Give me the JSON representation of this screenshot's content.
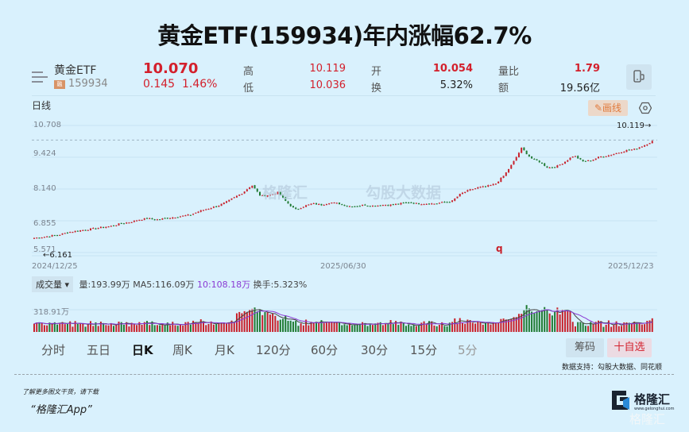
{
  "title": "黄金ETF(159934)年内涨幅62.7%",
  "quote": {
    "name": "黄金ETF",
    "badge": "融",
    "code": "159934",
    "price": "10.070",
    "change": "0.145",
    "change_pct": "1.46%",
    "fields": [
      {
        "label": "高",
        "value": "10.119",
        "color": "red"
      },
      {
        "label": "低",
        "value": "10.036",
        "color": "red"
      },
      {
        "label": "开",
        "value": "10.054",
        "color": "red"
      },
      {
        "label": "换",
        "value": "5.32%",
        "color": "dark"
      },
      {
        "label": "量比",
        "value": "1.79",
        "color": "red"
      },
      {
        "label": "额",
        "value": "19.56亿",
        "color": "dark"
      }
    ]
  },
  "toolbar": {
    "period_name": "日线",
    "draw_label": "✎画线",
    "phone_icon": "phone-landscape-icon",
    "settings_icon": "hexagon-gear-icon"
  },
  "main_chart": {
    "y_ticks": [
      "10.708",
      "9.424",
      "8.140",
      "6.855",
      "5.571"
    ],
    "x_ticks": [
      "2024/12/25",
      "2025/06/30",
      "2025/12/23"
    ],
    "max_marker": "10.119→",
    "min_marker": "←6.161",
    "mid_marker": "q",
    "watermark_left": "格隆汇",
    "watermark_right": "勾股大数据",
    "watermark_url": "www.gogudata.com"
  },
  "volume": {
    "selector": "成交量",
    "vol": "量:193.99万",
    "ma5": "MA5:116.09万",
    "ma10": "10:108.18万",
    "turnover": "换手:5.323%",
    "y_tick": "318.91万"
  },
  "tabs": [
    {
      "label": "分时",
      "active": false
    },
    {
      "label": "五日",
      "active": false
    },
    {
      "label": "日K",
      "active": true
    },
    {
      "label": "周K",
      "active": false
    },
    {
      "label": "月K",
      "active": false
    },
    {
      "label": "120分",
      "active": false
    },
    {
      "label": "60分",
      "active": false
    },
    {
      "label": "30分",
      "active": false
    },
    {
      "label": "15分",
      "active": false
    },
    {
      "label": "5分",
      "active": false
    }
  ],
  "buttons": {
    "chips": "筹码",
    "add_watchlist": "十自选"
  },
  "source": "数据支持：勾股大数据、同花顺",
  "footer": {
    "promo_line1": "了解更多图文干货，请下载",
    "promo_line2": "“格隆汇App”",
    "logo_text": "格隆汇",
    "logo_url": "www.gelonghui.com",
    "watermark": "格隆汇"
  },
  "colors": {
    "up": "#c8202a",
    "down": "#1e7a32",
    "bg": "#d9f1fd",
    "accent_orange": "#e07a3c",
    "ma10_purple": "#8a3ad4"
  },
  "chart_data": {
    "type": "candlestick",
    "title": "黄金ETF(159934) 日K",
    "x_range": [
      "2024/12/25",
      "2025/12/23"
    ],
    "ylim": [
      5.571,
      10.708
    ],
    "y_ticks": [
      5.571,
      6.855,
      8.14,
      9.424,
      10.708
    ],
    "period_high": 10.119,
    "period_low": 6.161,
    "close_path": [
      6.16,
      6.2,
      6.25,
      6.3,
      6.4,
      6.45,
      6.5,
      6.55,
      6.6,
      6.65,
      6.75,
      6.8,
      6.9,
      6.95,
      6.9,
      6.95,
      7.0,
      7.05,
      7.1,
      7.25,
      7.35,
      7.45,
      7.6,
      7.8,
      8.0,
      8.3,
      7.85,
      7.9,
      8.0,
      7.6,
      7.3,
      7.45,
      7.55,
      7.5,
      7.6,
      7.55,
      7.45,
      7.45,
      7.5,
      7.45,
      7.5,
      7.5,
      7.55,
      7.6,
      7.55,
      7.55,
      7.55,
      7.6,
      7.65,
      7.95,
      8.1,
      8.2,
      8.25,
      8.35,
      8.7,
      9.2,
      9.8,
      9.4,
      9.25,
      9.0,
      9.05,
      9.25,
      9.5,
      9.25,
      9.3,
      9.45,
      9.5,
      9.6,
      9.7,
      9.75,
      9.9,
      10.07
    ],
    "volume_ylabel_tick": "318.91万",
    "volume_last": "193.99万",
    "ma5": "116.09万",
    "ma10": "108.18万"
  }
}
